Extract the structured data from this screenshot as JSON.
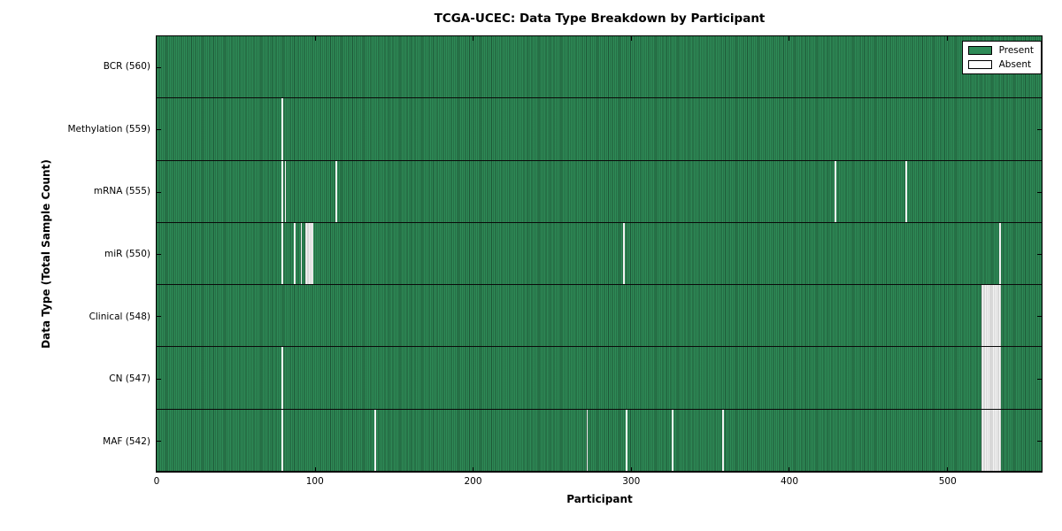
{
  "title": "TCGA-UCEC: Data Type Breakdown by Participant",
  "chart_data": {
    "type": "heatmap",
    "title": "TCGA-UCEC: Data Type Breakdown by Participant",
    "xlabel": "Participant",
    "ylabel": "Data Type (Total Sample Count)",
    "x_max": 560,
    "x_ticks": [
      0,
      100,
      200,
      300,
      400,
      500
    ],
    "grid": false,
    "legend_position": "upper-right",
    "legend": [
      {
        "label": "Present",
        "color": "#2e8b57"
      },
      {
        "label": "Absent",
        "color": "#ffffff"
      }
    ],
    "colors": {
      "present": "#2e8b57",
      "absent": "#f2f2f2",
      "cell_edge": "#000000"
    },
    "rows": [
      {
        "label": "BCR (560)",
        "data_type": "BCR",
        "total": 560,
        "absent_participants": []
      },
      {
        "label": "Methylation (559)",
        "data_type": "Methylation",
        "total": 559,
        "absent_participants": [
          79
        ]
      },
      {
        "label": "mRNA (555)",
        "data_type": "mRNA",
        "total": 555,
        "absent_participants": [
          79,
          81,
          113,
          429,
          474
        ]
      },
      {
        "label": "miR (550)",
        "data_type": "miR",
        "total": 550,
        "absent_participants": [
          79,
          87,
          91,
          94,
          95,
          96,
          97,
          98,
          295,
          533
        ]
      },
      {
        "label": "Clinical (548)",
        "data_type": "Clinical",
        "total": 548,
        "absent_participants": [
          522,
          523,
          524,
          525,
          526,
          527,
          528,
          529,
          530,
          531,
          532,
          533
        ]
      },
      {
        "label": "CN (547)",
        "data_type": "CN",
        "total": 547,
        "absent_participants": [
          79,
          522,
          523,
          524,
          525,
          526,
          527,
          528,
          529,
          530,
          531,
          532,
          533
        ]
      },
      {
        "label": "MAF (542)",
        "data_type": "MAF",
        "total": 542,
        "absent_participants": [
          79,
          138,
          272,
          297,
          326,
          358,
          522,
          523,
          524,
          525,
          526,
          527,
          528,
          529,
          530,
          531,
          532,
          533
        ]
      }
    ]
  }
}
